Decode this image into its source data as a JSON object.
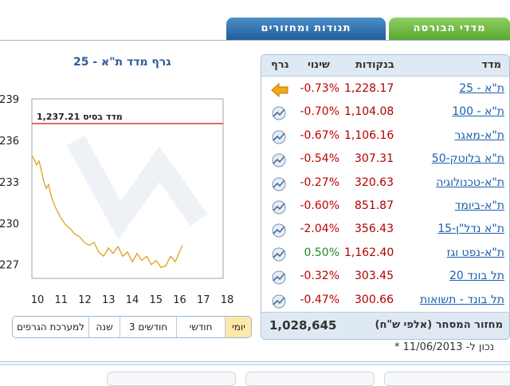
{
  "tabs": [
    {
      "label": "מדדי הבורסה",
      "active": true,
      "color": "#5aa831"
    },
    {
      "label": "תנודות ומחזורים",
      "active": false,
      "color": "#1f5e9c"
    }
  ],
  "chart": {
    "title": "גרף מדד ת\"א - 25",
    "base_label": "מדד בסיס 1,237.21"
  },
  "chart_data": {
    "type": "line",
    "title": "גרף מדד ת\"א - 25",
    "x_ticks": [
      "10",
      "11",
      "12",
      "13",
      "14",
      "15",
      "16",
      "17",
      "18"
    ],
    "y_ticks": [
      "239",
      "236",
      "233",
      "230",
      "227"
    ],
    "y_tick_values": [
      1239,
      1236,
      1233,
      1230,
      1227
    ],
    "xlim": [
      10,
      18
    ],
    "ylim": [
      1226,
      1239
    ],
    "base_value": 1237.21,
    "base_label": "מדד בסיס 1,237.21",
    "series": [
      {
        "color": "#e0a020",
        "x": [
          10.0,
          10.1,
          10.2,
          10.3,
          10.4,
          10.5,
          10.6,
          10.7,
          10.8,
          10.9,
          11.0,
          11.2,
          11.4,
          11.6,
          11.8,
          12.0,
          12.2,
          12.4,
          12.6,
          12.8,
          13.0,
          13.2,
          13.4,
          13.6,
          13.8,
          14.0,
          14.2,
          14.4,
          14.6,
          14.8,
          15.0,
          15.2,
          15.4,
          15.6,
          15.8,
          16.0,
          16.1,
          16.2,
          16.3
        ],
        "y": [
          1234.9,
          1234.6,
          1234.2,
          1234.5,
          1233.8,
          1233.0,
          1232.5,
          1232.8,
          1232.0,
          1231.5,
          1231.1,
          1230.4,
          1229.9,
          1229.6,
          1229.2,
          1229.0,
          1228.6,
          1228.4,
          1228.6,
          1227.9,
          1227.6,
          1228.2,
          1227.8,
          1228.3,
          1227.6,
          1227.9,
          1227.2,
          1227.8,
          1227.3,
          1227.6,
          1227.0,
          1227.3,
          1226.8,
          1226.9,
          1227.6,
          1227.2,
          1227.6,
          1228.0,
          1228.4
        ]
      }
    ]
  },
  "range_buttons": [
    {
      "label": "יומי",
      "active": true
    },
    {
      "label": "חודשי",
      "active": false
    },
    {
      "label": "3 חודשים",
      "active": false
    },
    {
      "label": "שנה",
      "active": false
    },
    {
      "label": "למערכת הגרפים",
      "active": false
    }
  ],
  "table": {
    "headers": {
      "name": "מדד",
      "points": "בנקודות",
      "change": "שינוי",
      "graph": "גרף"
    },
    "rows": [
      {
        "name": "ת\"א - 25",
        "points": "1,228.17",
        "change": "-0.73%",
        "trend": "neg",
        "selected": true
      },
      {
        "name": "ת\"א - 100",
        "points": "1,104.08",
        "change": "-0.70%",
        "trend": "neg",
        "selected": false
      },
      {
        "name": "ת\"א-מאגר",
        "points": "1,106.16",
        "change": "-0.67%",
        "trend": "neg",
        "selected": false
      },
      {
        "name": "ת\"א בלוטק-50",
        "points": "307.31",
        "change": "-0.54%",
        "trend": "neg",
        "selected": false
      },
      {
        "name": "ת\"א-טכנולוגיה",
        "points": "320.63",
        "change": "-0.27%",
        "trend": "neg",
        "selected": false
      },
      {
        "name": "ת\"א-ביומד",
        "points": "851.87",
        "change": "-0.60%",
        "trend": "neg",
        "selected": false
      },
      {
        "name": "ת\"א נדל\"ן-15",
        "points": "356.43",
        "change": "-2.04%",
        "trend": "neg",
        "selected": false
      },
      {
        "name": "ת\"א-נפט וגז",
        "points": "1,162.40",
        "change": "0.50%",
        "trend": "pos",
        "selected": false
      },
      {
        "name": "תל בונד 20",
        "points": "303.45",
        "change": "-0.32%",
        "trend": "neg",
        "selected": false
      },
      {
        "name": "תל בונד - תשואות",
        "points": "300.66",
        "change": "-0.47%",
        "trend": "neg",
        "selected": false
      }
    ],
    "turnover_label": "מחזור המסחר (אלפי ש\"ח)",
    "turnover_value": "1,028,645"
  },
  "date_note": "* נכון ל- 11/06/2013"
}
